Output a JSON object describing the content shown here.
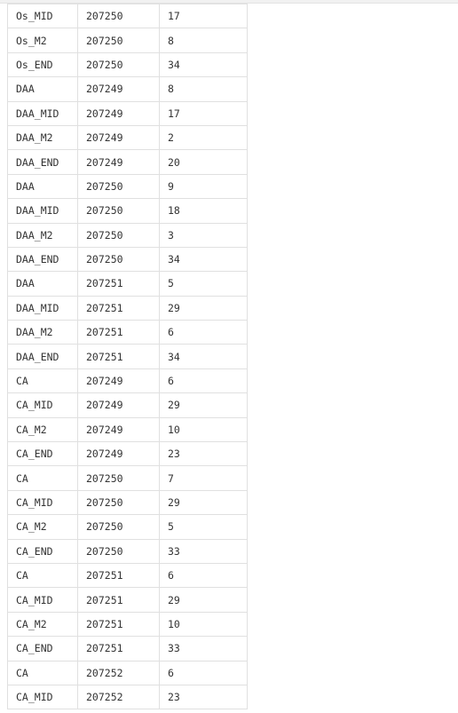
{
  "table": {
    "rows": [
      [
        "Os_MID",
        "207250",
        "17"
      ],
      [
        "Os_M2",
        "207250",
        "8"
      ],
      [
        "Os_END",
        "207250",
        "34"
      ],
      [
        "DAA",
        "207249",
        "8"
      ],
      [
        "DAA_MID",
        "207249",
        "17"
      ],
      [
        "DAA_M2",
        "207249",
        "2"
      ],
      [
        "DAA_END",
        "207249",
        "20"
      ],
      [
        "DAA",
        "207250",
        "9"
      ],
      [
        "DAA_MID",
        "207250",
        "18"
      ],
      [
        "DAA_M2",
        "207250",
        "3"
      ],
      [
        "DAA_END",
        "207250",
        "34"
      ],
      [
        "DAA",
        "207251",
        "5"
      ],
      [
        "DAA_MID",
        "207251",
        "29"
      ],
      [
        "DAA_M2",
        "207251",
        "6"
      ],
      [
        "DAA_END",
        "207251",
        "34"
      ],
      [
        "CA",
        "207249",
        "6"
      ],
      [
        "CA_MID",
        "207249",
        "29"
      ],
      [
        "CA_M2",
        "207249",
        "10"
      ],
      [
        "CA_END",
        "207249",
        "23"
      ],
      [
        "CA",
        "207250",
        "7"
      ],
      [
        "CA_MID",
        "207250",
        "29"
      ],
      [
        "CA_M2",
        "207250",
        "5"
      ],
      [
        "CA_END",
        "207250",
        "33"
      ],
      [
        "CA",
        "207251",
        "6"
      ],
      [
        "CA_MID",
        "207251",
        "29"
      ],
      [
        "CA_M2",
        "207251",
        "10"
      ],
      [
        "CA_END",
        "207251",
        "33"
      ],
      [
        "CA",
        "207252",
        "6"
      ],
      [
        "CA_MID",
        "207252",
        "23"
      ]
    ]
  },
  "colors": {
    "grid_border": "#e0e0e0",
    "text": "#333333",
    "background": "#ffffff"
  }
}
